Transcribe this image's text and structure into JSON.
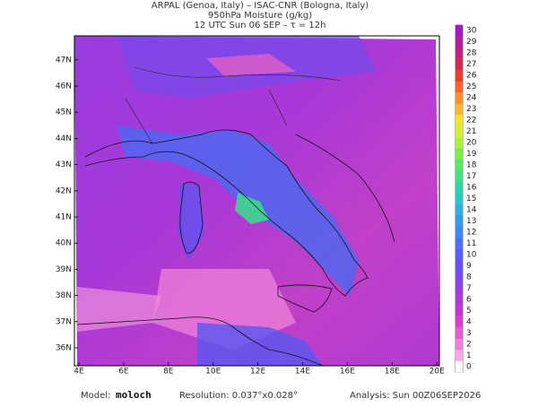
{
  "header": {
    "lines": [
      "ARPAL (Genoa, Italy)  –  ISAC-CNR (Bologna, Italy)",
      "950hPa Moisture (g/kg)",
      "12 UTC Sun 06 SEP  –  τ = 12h"
    ]
  },
  "map": {
    "lat_labels": [
      "36N",
      "37N",
      "38N",
      "39N",
      "40N",
      "41N",
      "42N",
      "43N",
      "44N",
      "45N",
      "46N",
      "47N"
    ],
    "lon_labels": [
      "4E",
      "6E",
      "8E",
      "10E",
      "12E",
      "14E",
      "16E",
      "18E",
      "20E"
    ]
  },
  "colorbar": {
    "labels": [
      0,
      1,
      2,
      3,
      4,
      5,
      6,
      7,
      8,
      9,
      10,
      11,
      12,
      13,
      14,
      15,
      16,
      17,
      18,
      19,
      20,
      21,
      22,
      23,
      24,
      25,
      26,
      27,
      28,
      29,
      30
    ],
    "colors": [
      "#ffffff",
      "#f7a8e8",
      "#ef7fdc",
      "#e85ad0",
      "#d940c8",
      "#c436d0",
      "#ad38d8",
      "#9640e0",
      "#7f46e8",
      "#6a4ef0",
      "#5a5cf4",
      "#4c70f4",
      "#3f86f0",
      "#349ce8",
      "#2cb2dc",
      "#2ac6c8",
      "#30d6a8",
      "#3ee088",
      "#56e866",
      "#7cee48",
      "#a8f23a",
      "#d4f032",
      "#f4e02e",
      "#f8b82c",
      "#f8902a",
      "#f26628",
      "#e44030",
      "#d02a50",
      "#c02478",
      "#b020a0",
      "#a01cc0"
    ]
  },
  "footer": {
    "model_label": "Model:",
    "model": "moloch",
    "resolution": "Resolution: 0.037°x0.028°",
    "analysis": "Analysis: Sun 00Z06SEP2026"
  }
}
